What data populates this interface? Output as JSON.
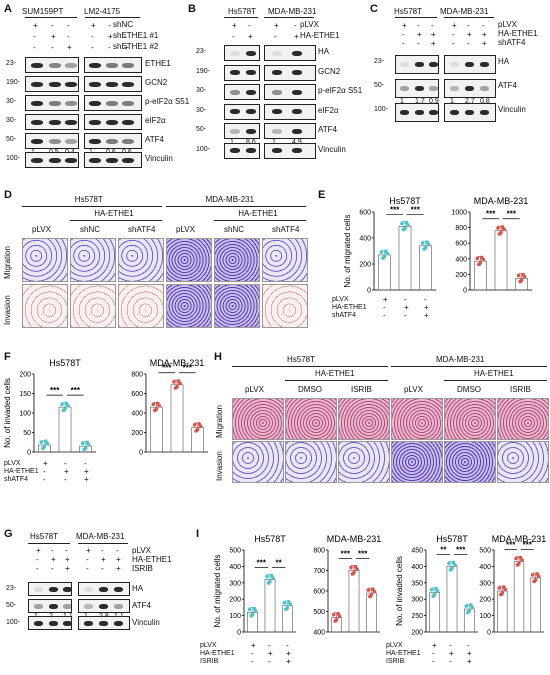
{
  "panels": {
    "A": {
      "label": "A",
      "cells": [
        "SUM159PT",
        "LM2-4175"
      ],
      "rows": [
        "shNC",
        "shETHE1 #1",
        "shETHE1 #2"
      ],
      "marks": [
        [
          "+",
          "-",
          "-",
          "+",
          "-",
          "-"
        ],
        [
          "-",
          "+",
          "-",
          "-",
          "+",
          "-"
        ],
        [
          "-",
          "-",
          "+",
          "-",
          "-",
          "+"
        ]
      ],
      "bands": [
        "ETHE1",
        "GCN2",
        "p-eIF2α S51",
        "eIF2α",
        "ATF4",
        "Vinculin"
      ],
      "mw": [
        "23-",
        "190-",
        "30-",
        "30-",
        "50-",
        "100-"
      ],
      "quant": [
        "1",
        "0.5",
        "0.4",
        "1",
        "0.6",
        "0.6"
      ]
    },
    "B": {
      "label": "B",
      "cells": [
        "Hs578T",
        "MDA-MB-231"
      ],
      "rows": [
        "pLVX",
        "HA-ETHE1"
      ],
      "marks": [
        [
          "+",
          "-",
          "+",
          "-"
        ],
        [
          "-",
          "+",
          "-",
          "+"
        ]
      ],
      "bands": [
        "HA",
        "GCN2",
        "p-eIF2α S51",
        "eIF2α",
        "ATF4",
        "Vinculin"
      ],
      "mw": [
        "23-",
        "190-",
        "30-",
        "30-",
        "50-",
        "100-"
      ],
      "quant": [
        "1",
        "8.6",
        "1",
        "4.9"
      ]
    },
    "C": {
      "label": "C",
      "cells": [
        "Hs578T",
        "MDA-MB-231"
      ],
      "rows": [
        "pLVX",
        "HA-ETHE1",
        "shATF4"
      ],
      "marks": [
        [
          "+",
          "-",
          "-",
          "+",
          "-",
          "-"
        ],
        [
          "-",
          "+",
          "+",
          "-",
          "+",
          "+"
        ],
        [
          "-",
          "-",
          "+",
          "-",
          "-",
          "+"
        ]
      ],
      "bands": [
        "HA",
        "ATF4",
        "Vinculin"
      ],
      "mw": [
        "23-",
        "50-",
        "100-"
      ],
      "quant": [
        "1",
        "1.7",
        "0.9",
        "1",
        "2.7",
        "0.8"
      ]
    },
    "D": {
      "label": "D",
      "cells": [
        "Hs578T",
        "MDA-MB-231"
      ],
      "group": "HA-ETHE1",
      "cols": [
        "pLVX",
        "shNC",
        "shATF4",
        "pLVX",
        "shNC",
        "shATF4"
      ],
      "rows": [
        "Migration",
        "Invasion"
      ]
    },
    "E": {
      "label": "E",
      "ylabel": "No. of migrated cells",
      "rows": [
        "pLVX",
        "HA-ETHE1",
        "shATF4"
      ],
      "sig": [
        "***",
        "***"
      ]
    },
    "F": {
      "label": "F",
      "ylabel": "No. of invaded cells",
      "rows": [
        "pLVX",
        "HA-ETHE1",
        "shATF4"
      ],
      "sig": [
        "***",
        "***"
      ]
    },
    "G": {
      "label": "G",
      "cells": [
        "Hs578T",
        "MDA-MB-231"
      ],
      "rows": [
        "pLVX",
        "HA-ETHE1",
        "ISRIB"
      ],
      "marks": [
        [
          "+",
          "-",
          "-",
          "+",
          "-",
          "-"
        ],
        [
          "-",
          "+",
          "+",
          "-",
          "+",
          "+"
        ],
        [
          "-",
          "-",
          "+",
          "-",
          "-",
          "+"
        ]
      ],
      "bands": [
        "HA",
        "ATF4",
        "Vinculin"
      ],
      "mw": [
        "23-",
        "50-",
        "100-"
      ],
      "quant": [
        "1",
        "2",
        "1.1",
        "1",
        "2.8",
        "1.1"
      ]
    },
    "H": {
      "label": "H",
      "cells": [
        "Hs578T",
        "MDA-MB-231"
      ],
      "group": "HA-ETHE1",
      "cols": [
        "pLVX",
        "DMSO",
        "ISRIB",
        "pLVX",
        "DMSO",
        "ISRIB"
      ],
      "rows": [
        "Migration",
        "Invasion"
      ]
    },
    "I": {
      "label": "I",
      "ylabel_mig": "No. of migrated cells",
      "ylabel_inv": "No. of invaded cells",
      "rows": [
        "pLVX",
        "HA-ETHE1",
        "ISRIB"
      ],
      "sig": [
        "***",
        "**",
        "***",
        "***",
        "**",
        "***",
        "***",
        "***"
      ]
    }
  },
  "chart_data": [
    {
      "id": "E-Hs578T",
      "type": "bar",
      "title": "Hs578T",
      "ylabel": "No. of migrated cells",
      "categories": [
        "pLVX",
        "HA-ETHE1",
        "HA-ETHE1+shATF4"
      ],
      "values": [
        270,
        490,
        340
      ],
      "ylim": [
        0,
        600
      ],
      "yticks": [
        0,
        200,
        400,
        600
      ],
      "sig": [
        "***",
        "***"
      ],
      "color": "#4dc3c9"
    },
    {
      "id": "E-MDA",
      "type": "bar",
      "title": "MDA-MB-231",
      "categories": [
        "pLVX",
        "HA-ETHE1",
        "HA-ETHE1+shATF4"
      ],
      "values": [
        370,
        760,
        150
      ],
      "ylim": [
        0,
        1000
      ],
      "yticks": [
        0,
        200,
        400,
        600,
        800,
        1000
      ],
      "sig": [
        "***",
        "***"
      ],
      "color": "#d9534f"
    },
    {
      "id": "F-Hs578T",
      "type": "bar",
      "title": "Hs578T",
      "ylabel": "No. of invaded cells",
      "categories": [
        "pLVX",
        "HA-ETHE1",
        "HA-ETHE1+shATF4"
      ],
      "values": [
        18,
        115,
        15
      ],
      "ylim": [
        0,
        200
      ],
      "yticks": [
        0,
        50,
        100,
        150,
        200
      ],
      "sig": [
        "***",
        "***"
      ],
      "color": "#4dc3c9"
    },
    {
      "id": "F-MDA",
      "type": "bar",
      "title": "MDA-MB-231",
      "categories": [
        "pLVX",
        "HA-ETHE1",
        "HA-ETHE1+shATF4"
      ],
      "values": [
        460,
        690,
        250
      ],
      "ylim": [
        0,
        800
      ],
      "yticks": [
        0,
        200,
        400,
        600,
        800
      ],
      "sig": [
        "***",
        "***"
      ],
      "color": "#d9534f"
    },
    {
      "id": "I-mig-Hs578T",
      "type": "bar",
      "title": "Hs578T",
      "ylabel": "No. of migrated cells",
      "categories": [
        "pLVX",
        "HA-ETHE1",
        "HA-ETHE1+ISRIB"
      ],
      "values": [
        120,
        320,
        160
      ],
      "ylim": [
        0,
        500
      ],
      "yticks": [
        0,
        100,
        200,
        300,
        400,
        500
      ],
      "sig": [
        "***",
        "**"
      ],
      "color": "#4dc3c9"
    },
    {
      "id": "I-mig-MDA",
      "type": "bar",
      "title": "MDA-MB-231",
      "categories": [
        "pLVX",
        "HA-ETHE1",
        "HA-ETHE1+ISRIB"
      ],
      "values": [
        470,
        700,
        590
      ],
      "ylim": [
        400,
        800
      ],
      "yticks": [
        400,
        500,
        600,
        700,
        800
      ],
      "sig": [
        "***",
        "***"
      ],
      "color": "#d9534f"
    },
    {
      "id": "I-inv-Hs578T",
      "type": "bar",
      "title": "Hs578T",
      "ylabel": "No. of invaded cells",
      "categories": [
        "pLVX",
        "HA-ETHE1",
        "HA-ETHE1+ISRIB"
      ],
      "values": [
        320,
        400,
        270
      ],
      "ylim": [
        200,
        450
      ],
      "yticks": [
        200,
        250,
        300,
        350,
        400,
        450
      ],
      "sig": [
        "**",
        "***"
      ],
      "color": "#4dc3c9"
    },
    {
      "id": "I-inv-MDA",
      "type": "bar",
      "title": "MDA-MB-231",
      "categories": [
        "pLVX",
        "HA-ETHE1",
        "HA-ETHE1+ISRIB"
      ],
      "values": [
        250,
        430,
        330
      ],
      "ylim": [
        0,
        500
      ],
      "yticks": [
        0,
        100,
        200,
        300,
        400,
        500
      ],
      "sig": [
        "***",
        "***"
      ],
      "color": "#d9534f"
    }
  ]
}
